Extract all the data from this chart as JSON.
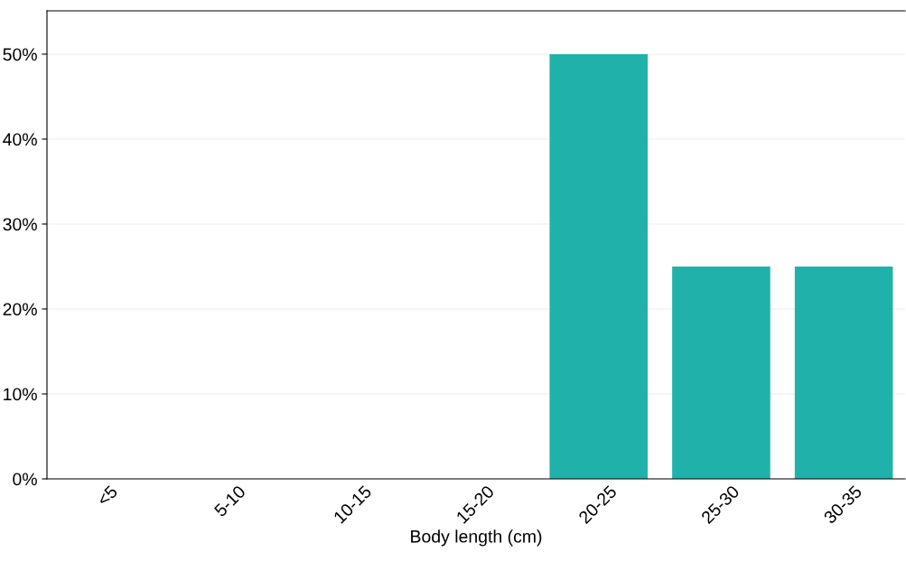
{
  "chart_data": {
    "type": "bar",
    "xlabel": "Body length (cm)",
    "categories": [
      "<5",
      "5-10",
      "10-15",
      "15-20",
      "20-25",
      "25-30",
      "30-35"
    ],
    "values": [
      0,
      0,
      0,
      0,
      50,
      25,
      25
    ],
    "color": "#20b2aa",
    "ylim": [
      0,
      55.1
    ],
    "yticks": [
      {
        "value": 0,
        "label": "0%"
      },
      {
        "value": 10,
        "label": "10%"
      },
      {
        "value": 20,
        "label": "20%"
      },
      {
        "value": 30,
        "label": "30%"
      },
      {
        "value": 40,
        "label": "40%"
      },
      {
        "value": 50,
        "label": "50%"
      }
    ],
    "grid": "y"
  }
}
